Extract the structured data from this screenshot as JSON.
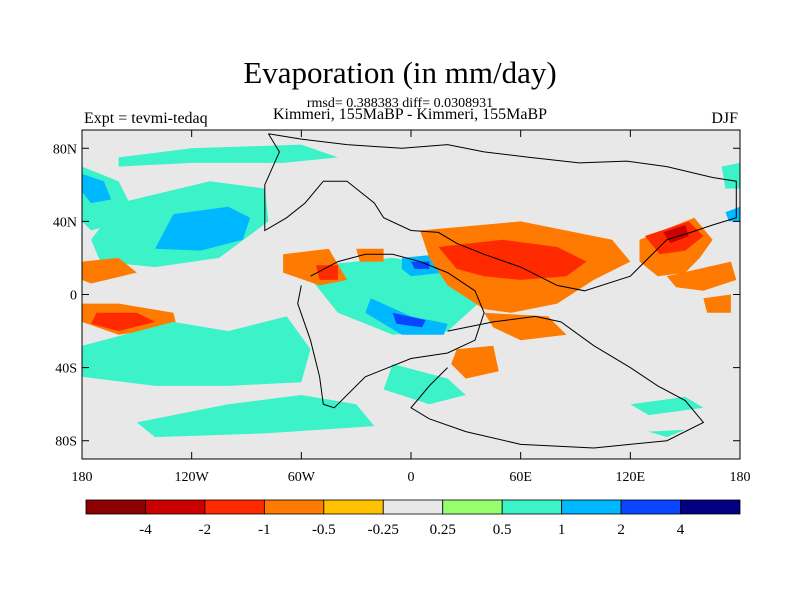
{
  "header": {
    "title": "Evaporation (in mm/day)",
    "stats": "rmsd= 0.388383 diff= 0.0308931",
    "expt": "Expt = tevmi-tedaq",
    "subtitle": "Kimmeri, 155MaBP - Kimmeri, 155MaBP",
    "season": "DJF"
  },
  "axes": {
    "x_ticks": [
      {
        "value": -180,
        "label": "180"
      },
      {
        "value": -120,
        "label": "120W"
      },
      {
        "value": -60,
        "label": "60W"
      },
      {
        "value": 0,
        "label": "0"
      },
      {
        "value": 60,
        "label": "60E"
      },
      {
        "value": 120,
        "label": "120E"
      },
      {
        "value": 180,
        "label": "180"
      }
    ],
    "y_ticks": [
      {
        "value": 80,
        "label": "80N"
      },
      {
        "value": 40,
        "label": "40N"
      },
      {
        "value": 0,
        "label": "0"
      },
      {
        "value": -40,
        "label": "40S"
      },
      {
        "value": -80,
        "label": "80S"
      }
    ],
    "lon_range": [
      -180,
      180
    ],
    "lat_range": [
      -90,
      90
    ]
  },
  "colorbar": {
    "colors": [
      "#8b0000",
      "#cc0000",
      "#ff2a00",
      "#ff7a00",
      "#ffc200",
      "#e8e8e8",
      "#96ff6e",
      "#3cf2c8",
      "#00b8ff",
      "#0a46ff",
      "#000080"
    ],
    "labels": [
      "-4",
      "-2",
      "-1",
      "-0.5",
      "-0.25",
      "0.25",
      "0.5",
      "1",
      "2",
      "4"
    ]
  },
  "background_color": "#e8e8e8",
  "anomaly_regions": [
    {
      "level": "0.5",
      "points": [
        [
          -160,
          75
        ],
        [
          -120,
          80
        ],
        [
          -60,
          82
        ],
        [
          -40,
          75
        ],
        [
          -70,
          72
        ],
        [
          -120,
          72
        ],
        [
          -160,
          70
        ]
      ]
    },
    {
      "level": "0.5",
      "points": [
        [
          -180,
          70
        ],
        [
          -160,
          62
        ],
        [
          -150,
          42
        ],
        [
          -175,
          35
        ],
        [
          -180,
          40
        ]
      ]
    },
    {
      "level": "1",
      "points": [
        [
          -180,
          66
        ],
        [
          -168,
          62
        ],
        [
          -164,
          52
        ],
        [
          -175,
          50
        ],
        [
          -180,
          56
        ]
      ]
    },
    {
      "level": "0.5",
      "points": [
        [
          -160,
          50
        ],
        [
          -110,
          62
        ],
        [
          -80,
          58
        ],
        [
          -78,
          40
        ],
        [
          -105,
          20
        ],
        [
          -140,
          15
        ],
        [
          -170,
          18
        ],
        [
          -175,
          30
        ]
      ]
    },
    {
      "level": "1",
      "points": [
        [
          -130,
          44
        ],
        [
          -100,
          48
        ],
        [
          -88,
          42
        ],
        [
          -92,
          30
        ],
        [
          -115,
          24
        ],
        [
          -140,
          25
        ]
      ]
    },
    {
      "level": "-0.5",
      "points": [
        [
          -180,
          18
        ],
        [
          -160,
          20
        ],
        [
          -150,
          12
        ],
        [
          -175,
          6
        ],
        [
          -180,
          8
        ]
      ]
    },
    {
      "level": "-0.5",
      "points": [
        [
          -180,
          -5
        ],
        [
          -160,
          -5
        ],
        [
          -130,
          -10
        ],
        [
          -128,
          -18
        ],
        [
          -160,
          -22
        ],
        [
          -180,
          -15
        ]
      ]
    },
    {
      "level": "-1",
      "points": [
        [
          -172,
          -10
        ],
        [
          -150,
          -10
        ],
        [
          -140,
          -15
        ],
        [
          -160,
          -20
        ],
        [
          -175,
          -16
        ]
      ]
    },
    {
      "level": "0.5",
      "points": [
        [
          -180,
          -28
        ],
        [
          -130,
          -15
        ],
        [
          -100,
          -20
        ],
        [
          -68,
          -12
        ],
        [
          -55,
          -30
        ],
        [
          -60,
          -48
        ],
        [
          -100,
          -50
        ],
        [
          -140,
          -50
        ],
        [
          -180,
          -45
        ]
      ]
    },
    {
      "level": "0.5",
      "points": [
        [
          -150,
          -70
        ],
        [
          -100,
          -60
        ],
        [
          -60,
          -55
        ],
        [
          -30,
          -60
        ],
        [
          -20,
          -72
        ],
        [
          -80,
          -76
        ],
        [
          -140,
          -78
        ]
      ]
    },
    {
      "level": "0.5",
      "points": [
        [
          -60,
          15
        ],
        [
          -10,
          20
        ],
        [
          20,
          15
        ],
        [
          40,
          -2
        ],
        [
          20,
          -20
        ],
        [
          -10,
          -22
        ],
        [
          -40,
          -10
        ]
      ]
    },
    {
      "level": "1",
      "points": [
        [
          -22,
          -2
        ],
        [
          0,
          -12
        ],
        [
          20,
          -16
        ],
        [
          18,
          -22
        ],
        [
          -5,
          -22
        ],
        [
          -25,
          -10
        ]
      ]
    },
    {
      "level": "2",
      "points": [
        [
          -10,
          -10
        ],
        [
          8,
          -14
        ],
        [
          6,
          -18
        ],
        [
          -8,
          -16
        ]
      ]
    },
    {
      "level": "1",
      "points": [
        [
          -5,
          20
        ],
        [
          15,
          22
        ],
        [
          18,
          12
        ],
        [
          0,
          10
        ],
        [
          -5,
          14
        ]
      ]
    },
    {
      "level": "2",
      "points": [
        [
          0,
          18
        ],
        [
          10,
          18
        ],
        [
          10,
          14
        ],
        [
          2,
          14
        ]
      ]
    },
    {
      "level": "-0.5",
      "points": [
        [
          -70,
          22
        ],
        [
          -45,
          25
        ],
        [
          -35,
          8
        ],
        [
          -50,
          5
        ],
        [
          -70,
          12
        ]
      ]
    },
    {
      "level": "-1",
      "points": [
        [
          -52,
          16
        ],
        [
          -40,
          16
        ],
        [
          -40,
          8
        ],
        [
          -50,
          8
        ]
      ]
    },
    {
      "level": "-0.5",
      "points": [
        [
          -30,
          25
        ],
        [
          -15,
          25
        ],
        [
          -15,
          18
        ],
        [
          -28,
          18
        ]
      ]
    },
    {
      "level": "-0.5",
      "points": [
        [
          5,
          35
        ],
        [
          60,
          40
        ],
        [
          110,
          30
        ],
        [
          120,
          18
        ],
        [
          100,
          8
        ],
        [
          80,
          -5
        ],
        [
          55,
          -10
        ],
        [
          40,
          -8
        ],
        [
          20,
          5
        ],
        [
          10,
          20
        ]
      ]
    },
    {
      "level": "-1",
      "points": [
        [
          15,
          26
        ],
        [
          50,
          30
        ],
        [
          80,
          26
        ],
        [
          96,
          18
        ],
        [
          85,
          10
        ],
        [
          60,
          8
        ],
        [
          40,
          10
        ],
        [
          25,
          14
        ]
      ]
    },
    {
      "level": "-0.5",
      "points": [
        [
          40,
          -10
        ],
        [
          75,
          -12
        ],
        [
          85,
          -22
        ],
        [
          60,
          -25
        ],
        [
          45,
          -18
        ]
      ]
    },
    {
      "level": "-0.5",
      "points": [
        [
          25,
          -30
        ],
        [
          45,
          -28
        ],
        [
          48,
          -42
        ],
        [
          30,
          -46
        ],
        [
          22,
          -38
        ]
      ]
    },
    {
      "level": "0.5",
      "points": [
        [
          -10,
          -38
        ],
        [
          20,
          -46
        ],
        [
          30,
          -55
        ],
        [
          10,
          -60
        ],
        [
          -15,
          -52
        ]
      ]
    },
    {
      "level": "-0.5",
      "points": [
        [
          125,
          30
        ],
        [
          155,
          42
        ],
        [
          165,
          30
        ],
        [
          158,
          20
        ],
        [
          150,
          12
        ],
        [
          135,
          10
        ],
        [
          125,
          18
        ]
      ]
    },
    {
      "level": "-1",
      "points": [
        [
          128,
          32
        ],
        [
          152,
          40
        ],
        [
          160,
          32
        ],
        [
          150,
          24
        ],
        [
          136,
          22
        ]
      ]
    },
    {
      "level": "-2",
      "points": [
        [
          138,
          34
        ],
        [
          150,
          38
        ],
        [
          152,
          32
        ],
        [
          142,
          28
        ]
      ]
    },
    {
      "level": "-0.5",
      "points": [
        [
          140,
          10
        ],
        [
          175,
          18
        ],
        [
          178,
          8
        ],
        [
          160,
          2
        ],
        [
          145,
          4
        ]
      ]
    },
    {
      "level": "-0.5",
      "points": [
        [
          160,
          -2
        ],
        [
          175,
          0
        ],
        [
          175,
          -10
        ],
        [
          162,
          -10
        ]
      ]
    },
    {
      "level": "0.5",
      "points": [
        [
          170,
          70
        ],
        [
          180,
          72
        ],
        [
          180,
          58
        ],
        [
          172,
          58
        ]
      ]
    },
    {
      "level": "1",
      "points": [
        [
          172,
          45
        ],
        [
          180,
          48
        ],
        [
          180,
          40
        ],
        [
          174,
          40
        ]
      ]
    },
    {
      "level": "0.5",
      "points": [
        [
          120,
          -60
        ],
        [
          150,
          -56
        ],
        [
          160,
          -62
        ],
        [
          130,
          -66
        ]
      ]
    },
    {
      "level": "0.5",
      "points": [
        [
          130,
          -75
        ],
        [
          150,
          -74
        ],
        [
          140,
          -78
        ]
      ]
    }
  ],
  "coastlines": [
    [
      [
        -78,
        88
      ],
      [
        -60,
        85
      ],
      [
        -35,
        82
      ],
      [
        -5,
        80
      ],
      [
        20,
        82
      ],
      [
        40,
        78
      ],
      [
        65,
        75
      ],
      [
        92,
        72
      ],
      [
        118,
        73
      ],
      [
        140,
        70
      ],
      [
        165,
        64
      ],
      [
        178,
        62
      ],
      [
        178,
        42
      ],
      [
        165,
        38
      ],
      [
        153,
        34
      ],
      [
        140,
        30
      ],
      [
        130,
        20
      ],
      [
        120,
        10
      ],
      [
        95,
        2
      ],
      [
        80,
        5
      ],
      [
        60,
        15
      ],
      [
        40,
        22
      ],
      [
        25,
        28
      ],
      [
        15,
        34
      ],
      [
        0,
        35
      ],
      [
        -15,
        42
      ],
      [
        -20,
        50
      ],
      [
        -35,
        62
      ],
      [
        -48,
        62
      ],
      [
        -58,
        50
      ],
      [
        -68,
        42
      ],
      [
        -80,
        35
      ],
      [
        -80,
        60
      ],
      [
        -72,
        78
      ],
      [
        -78,
        88
      ]
    ],
    [
      [
        -55,
        10
      ],
      [
        -40,
        18
      ],
      [
        -25,
        22
      ],
      [
        -10,
        22
      ],
      [
        5,
        18
      ],
      [
        20,
        12
      ],
      [
        35,
        2
      ],
      [
        40,
        -10
      ],
      [
        35,
        -25
      ],
      [
        20,
        -32
      ],
      [
        0,
        -35
      ],
      [
        -25,
        -45
      ],
      [
        -42,
        -62
      ],
      [
        -48,
        -60
      ],
      [
        -50,
        -45
      ],
      [
        -55,
        -25
      ],
      [
        -62,
        -5
      ],
      [
        -60,
        5
      ]
    ],
    [
      [
        20,
        -20
      ],
      [
        45,
        -15
      ],
      [
        68,
        -12
      ],
      [
        82,
        -15
      ],
      [
        100,
        -28
      ],
      [
        120,
        -40
      ],
      [
        135,
        -50
      ],
      [
        150,
        -58
      ],
      [
        160,
        -70
      ],
      [
        140,
        -80
      ],
      [
        100,
        -84
      ],
      [
        60,
        -82
      ],
      [
        30,
        -75
      ],
      [
        10,
        -68
      ],
      [
        0,
        -62
      ],
      [
        10,
        -50
      ],
      [
        20,
        -40
      ]
    ]
  ]
}
